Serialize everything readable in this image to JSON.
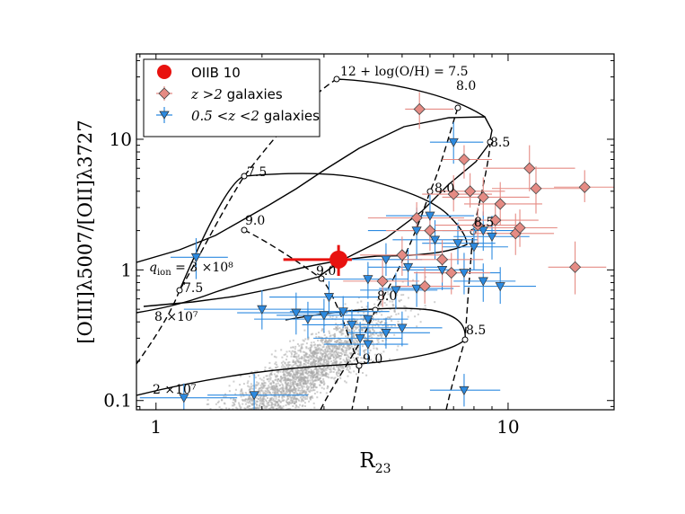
{
  "chart_data": {
    "type": "scatter",
    "title": "",
    "xlabel": "R",
    "xlabel_sub": "23",
    "ylabel": "[OIII]λ5007/[OII]λ3727",
    "xscale": "log",
    "yscale": "log",
    "xlim": [
      0.88,
      20
    ],
    "ylim": [
      0.085,
      45
    ],
    "xticks": [
      {
        "v": 1,
        "label": "1"
      },
      {
        "v": 10,
        "label": "10"
      }
    ],
    "yticks": [
      {
        "v": 0.1,
        "label": "0.1"
      },
      {
        "v": 1,
        "label": "1"
      },
      {
        "v": 10,
        "label": "10"
      }
    ],
    "legend": {
      "position": "top-left",
      "entries": [
        {
          "marker": "circle",
          "color": "#e8120f",
          "label": "OIIB 10"
        },
        {
          "marker": "diamond",
          "color": "#e58b84",
          "label_math": "z >2",
          "label": " galaxies"
        },
        {
          "marker": "triangle-down",
          "color": "#2c8ae0",
          "label_math": "0.5 <z <2",
          "label": " galaxies"
        }
      ]
    },
    "background_cloud": {
      "name": "local galaxies",
      "color": "#a8a8a8",
      "center_r23": 2.6,
      "center_o32": 0.16
    },
    "oiib10": {
      "x": 3.3,
      "y": 1.2,
      "xerr": [
        1.0,
        0.3
      ],
      "yerr": [
        0.3,
        0.35
      ],
      "color": "#e8120f"
    },
    "z_gt2_galaxies": [
      {
        "x": 5.6,
        "y": 17.0,
        "xl": 0.5,
        "xh": 1.4,
        "yl": 5,
        "yh": 6
      },
      {
        "x": 7.5,
        "y": 7.0,
        "xl": 1.0,
        "xh": 1.5,
        "yl": 2,
        "yh": 2
      },
      {
        "x": 7.0,
        "y": 3.8,
        "xl": 1.3,
        "xh": 2.0,
        "yl": 1,
        "yh": 1.5
      },
      {
        "x": 7.8,
        "y": 4.0,
        "xl": 1.5,
        "xh": 2.0,
        "yl": 1,
        "yh": 1.5
      },
      {
        "x": 8.5,
        "y": 3.6,
        "xl": 2.0,
        "xh": 3.0,
        "yl": 1,
        "yh": 1.5
      },
      {
        "x": 9.5,
        "y": 3.2,
        "xl": 2.0,
        "xh": 3.0,
        "yl": 1,
        "yh": 1.5
      },
      {
        "x": 11.5,
        "y": 6.0,
        "xl": 3.0,
        "xh": 4.0,
        "yl": 2,
        "yh": 3
      },
      {
        "x": 12.0,
        "y": 4.2,
        "xl": 3.0,
        "xh": 4.0,
        "yl": 1.5,
        "yh": 2
      },
      {
        "x": 16.5,
        "y": 4.3,
        "xl": 3.0,
        "xh": 4.0,
        "yl": 1,
        "yh": 1.5
      },
      {
        "x": 15.5,
        "y": 1.05,
        "xl": 2.5,
        "xh": 3.5,
        "yl": 0.4,
        "yh": 0.6
      },
      {
        "x": 10.5,
        "y": 1.9,
        "xl": 2.5,
        "xh": 3.0,
        "yl": 0.6,
        "yh": 0.8
      },
      {
        "x": 10.8,
        "y": 2.1,
        "xl": 2.5,
        "xh": 3.0,
        "yl": 0.6,
        "yh": 0.8
      },
      {
        "x": 9.2,
        "y": 2.4,
        "xl": 2.0,
        "xh": 3.0,
        "yl": 0.6,
        "yh": 0.8
      },
      {
        "x": 8.2,
        "y": 2.2,
        "xl": 2.0,
        "xh": 2.5,
        "yl": 0.6,
        "yh": 0.8
      },
      {
        "x": 6.0,
        "y": 2.0,
        "xl": 1.5,
        "xh": 2.0,
        "yl": 0.6,
        "yh": 0.8
      },
      {
        "x": 5.5,
        "y": 2.5,
        "xl": 1.5,
        "xh": 2.0,
        "yl": 0.6,
        "yh": 0.8
      },
      {
        "x": 5.0,
        "y": 1.3,
        "xl": 1.2,
        "xh": 1.5,
        "yl": 0.4,
        "yh": 0.5
      },
      {
        "x": 4.4,
        "y": 0.82,
        "xl": 1.0,
        "xh": 1.2,
        "yl": 0.3,
        "yh": 0.4
      },
      {
        "x": 6.5,
        "y": 1.2,
        "xl": 1.5,
        "xh": 2.0,
        "yl": 0.4,
        "yh": 0.5
      },
      {
        "x": 6.9,
        "y": 0.95,
        "xl": 1.5,
        "xh": 2.0,
        "yl": 0.3,
        "yh": 0.4
      },
      {
        "x": 5.8,
        "y": 0.75,
        "xl": 1.0,
        "xh": 1.5,
        "yl": 0.2,
        "yh": 0.3
      }
    ],
    "mid_z_galaxies": [
      {
        "x": 7.0,
        "y": 9.5,
        "xl": 1.0,
        "xh": 1.5,
        "yl": 3,
        "yh": 4
      },
      {
        "x": 1.3,
        "y": 1.25,
        "xl": 0.2,
        "xh": 0.3,
        "yl": 0.4,
        "yh": 0.5
      },
      {
        "x": 5.5,
        "y": 2.0,
        "xl": 1.5,
        "xh": 2.0,
        "yl": 0.8,
        "yh": 1.0
      },
      {
        "x": 6.0,
        "y": 2.6,
        "xl": 1.5,
        "xh": 2.0,
        "yl": 1.0,
        "yh": 1.2
      },
      {
        "x": 6.2,
        "y": 1.7,
        "xl": 1.5,
        "xh": 2.0,
        "yl": 0.5,
        "yh": 0.7
      },
      {
        "x": 7.2,
        "y": 1.6,
        "xl": 1.5,
        "xh": 2.0,
        "yl": 0.5,
        "yh": 0.7
      },
      {
        "x": 8.0,
        "y": 1.5,
        "xl": 1.5,
        "xh": 2.0,
        "yl": 0.5,
        "yh": 0.7
      },
      {
        "x": 8.5,
        "y": 2.0,
        "xl": 2.0,
        "xh": 2.5,
        "yl": 0.6,
        "yh": 0.8
      },
      {
        "x": 9.0,
        "y": 1.8,
        "xl": 2.0,
        "xh": 2.5,
        "yl": 0.6,
        "yh": 0.8
      },
      {
        "x": 4.5,
        "y": 1.2,
        "xl": 1.0,
        "xh": 1.2,
        "yl": 0.3,
        "yh": 0.4
      },
      {
        "x": 5.2,
        "y": 1.05,
        "xl": 1.2,
        "xh": 1.5,
        "yl": 0.3,
        "yh": 0.4
      },
      {
        "x": 6.5,
        "y": 1.0,
        "xl": 1.5,
        "xh": 2.0,
        "yl": 0.3,
        "yh": 0.4
      },
      {
        "x": 7.5,
        "y": 0.95,
        "xl": 1.5,
        "xh": 2.0,
        "yl": 0.3,
        "yh": 0.4
      },
      {
        "x": 8.5,
        "y": 0.82,
        "xl": 1.5,
        "xh": 2.0,
        "yl": 0.25,
        "yh": 0.3
      },
      {
        "x": 9.5,
        "y": 0.75,
        "xl": 2.0,
        "xh": 2.5,
        "yl": 0.2,
        "yh": 0.3
      },
      {
        "x": 4.0,
        "y": 0.85,
        "xl": 1.0,
        "xh": 1.2,
        "yl": 0.25,
        "yh": 0.3
      },
      {
        "x": 4.8,
        "y": 0.7,
        "xl": 1.0,
        "xh": 1.5,
        "yl": 0.2,
        "yh": 0.25
      },
      {
        "x": 5.5,
        "y": 0.72,
        "xl": 1.2,
        "xh": 1.5,
        "yl": 0.2,
        "yh": 0.25
      },
      {
        "x": 2.0,
        "y": 0.5,
        "xl": 0.8,
        "xh": 1.0,
        "yl": 0.15,
        "yh": 0.2
      },
      {
        "x": 2.5,
        "y": 0.47,
        "xl": 0.8,
        "xh": 1.0,
        "yl": 0.15,
        "yh": 0.2
      },
      {
        "x": 2.7,
        "y": 0.42,
        "xl": 0.8,
        "xh": 1.0,
        "yl": 0.12,
        "yh": 0.15
      },
      {
        "x": 3.0,
        "y": 0.45,
        "xl": 0.8,
        "xh": 1.0,
        "yl": 0.12,
        "yh": 0.15
      },
      {
        "x": 3.4,
        "y": 0.48,
        "xl": 1.0,
        "xh": 1.2,
        "yl": 0.12,
        "yh": 0.15
      },
      {
        "x": 3.6,
        "y": 0.38,
        "xl": 1.0,
        "xh": 1.2,
        "yl": 0.1,
        "yh": 0.12
      },
      {
        "x": 3.8,
        "y": 0.3,
        "xl": 1.0,
        "xh": 1.2,
        "yl": 0.08,
        "yh": 0.1
      },
      {
        "x": 4.0,
        "y": 0.27,
        "xl": 1.0,
        "xh": 1.2,
        "yl": 0.08,
        "yh": 0.1
      },
      {
        "x": 4.5,
        "y": 0.33,
        "xl": 1.0,
        "xh": 1.5,
        "yl": 0.08,
        "yh": 0.1
      },
      {
        "x": 5.0,
        "y": 0.36,
        "xl": 1.2,
        "xh": 1.5,
        "yl": 0.1,
        "yh": 0.12
      },
      {
        "x": 3.1,
        "y": 0.62,
        "xl": 1.0,
        "xh": 1.2,
        "yl": 0.15,
        "yh": 0.2
      },
      {
        "x": 4.0,
        "y": 0.42,
        "xl": 1.0,
        "xh": 1.2,
        "yl": 0.12,
        "yh": 0.15
      },
      {
        "x": 1.9,
        "y": 0.11,
        "xl": 0.5,
        "xh": 0.8,
        "yl": 0.03,
        "yh": 0.05
      },
      {
        "x": 1.2,
        "y": 0.105,
        "xl": 0.3,
        "xh": 0.5,
        "yl": 0.02,
        "yh": 0.03
      },
      {
        "x": 7.5,
        "y": 0.12,
        "xl": 1.5,
        "xh": 2.0,
        "yl": 0.03,
        "yh": 0.04
      }
    ],
    "curve_labels": {
      "q1_math": "q",
      "q1_sub": "ion",
      "q1_text": " = 3 ×10⁸",
      "q2_text": "8 ×10⁷",
      "q3_text": "2 ×10⁷",
      "metal_top": "12 + log(O/H) = 7.5",
      "m80": "8.0",
      "m85": "8.5",
      "m75": "7.5",
      "m90": "9.0"
    }
  }
}
